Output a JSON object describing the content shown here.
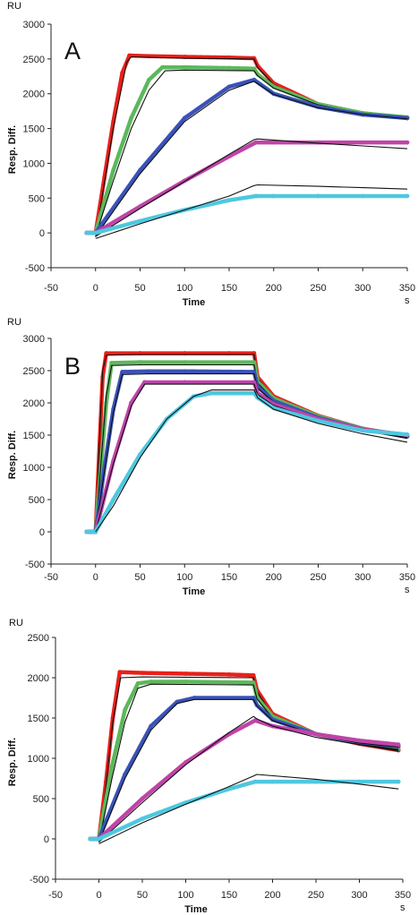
{
  "chart_data": [
    {
      "type": "line",
      "panel_label": "A",
      "ylabel": "Resp. Diff.",
      "y_unit": "RU",
      "xlabel": "Time",
      "x_unit": "s",
      "xlim": [
        -50,
        350
      ],
      "ylim": [
        -500,
        3000
      ],
      "xticks": [
        -50,
        0,
        50,
        100,
        150,
        200,
        250,
        300,
        350
      ],
      "yticks": [
        -500,
        0,
        500,
        1000,
        1500,
        2000,
        2500,
        3000
      ],
      "series": [
        {
          "color": "#e8201a",
          "style": "markers",
          "x": [
            -10,
            0,
            10,
            20,
            30,
            38,
            60,
            100,
            150,
            178,
            182,
            200,
            250,
            300,
            350
          ],
          "y": [
            0,
            0,
            800,
            1600,
            2300,
            2550,
            2540,
            2530,
            2520,
            2510,
            2400,
            2150,
            1850,
            1720,
            1650
          ]
        },
        {
          "color": "#111111",
          "style": "fit",
          "x": [
            0,
            20,
            35,
            40,
            100,
            178,
            182,
            200,
            250,
            300,
            350
          ],
          "y": [
            -60,
            1500,
            2450,
            2530,
            2510,
            2500,
            2380,
            2130,
            1840,
            1710,
            1640
          ]
        },
        {
          "color": "#5cb85c",
          "style": "markers",
          "x": [
            -10,
            0,
            20,
            40,
            60,
            75,
            100,
            150,
            178,
            182,
            200,
            250,
            300,
            350
          ],
          "y": [
            0,
            0,
            900,
            1650,
            2200,
            2380,
            2380,
            2370,
            2360,
            2280,
            2100,
            1850,
            1720,
            1660
          ]
        },
        {
          "color": "#111111",
          "style": "fit",
          "x": [
            0,
            20,
            40,
            60,
            78,
            100,
            178,
            182,
            200,
            250,
            300,
            350
          ],
          "y": [
            -40,
            750,
            1500,
            2050,
            2330,
            2340,
            2330,
            2260,
            2080,
            1840,
            1710,
            1650
          ]
        },
        {
          "color": "#3a52b8",
          "style": "markers",
          "x": [
            -10,
            0,
            50,
            100,
            150,
            178,
            200,
            250,
            300,
            350
          ],
          "y": [
            0,
            0,
            900,
            1650,
            2100,
            2200,
            2000,
            1810,
            1700,
            1650
          ]
        },
        {
          "color": "#111111",
          "style": "fit",
          "x": [
            0,
            50,
            100,
            150,
            178,
            200,
            250,
            300,
            350
          ],
          "y": [
            -50,
            850,
            1600,
            2050,
            2180,
            1990,
            1800,
            1700,
            1640
          ]
        },
        {
          "color": "#c044a8",
          "style": "markers",
          "x": [
            -10,
            0,
            50,
            100,
            150,
            180,
            200,
            250,
            300,
            350
          ],
          "y": [
            0,
            0,
            380,
            750,
            1100,
            1300,
            1300,
            1300,
            1300,
            1300
          ]
        },
        {
          "color": "#111111",
          "style": "fit",
          "x": [
            0,
            50,
            100,
            150,
            178,
            182,
            250,
            300,
            350
          ],
          "y": [
            -50,
            350,
            740,
            1130,
            1340,
            1350,
            1290,
            1250,
            1210
          ]
        },
        {
          "color": "#4ec8e0",
          "style": "markers",
          "x": [
            -10,
            0,
            50,
            100,
            150,
            180,
            200,
            250,
            300,
            350
          ],
          "y": [
            0,
            0,
            170,
            330,
            470,
            530,
            530,
            530,
            530,
            530
          ]
        },
        {
          "color": "#111111",
          "style": "fit",
          "x": [
            0,
            50,
            100,
            150,
            178,
            182,
            250,
            300,
            350
          ],
          "y": [
            -80,
            130,
            330,
            530,
            680,
            690,
            670,
            650,
            630
          ]
        }
      ]
    },
    {
      "type": "line",
      "panel_label": "B",
      "ylabel": "Resp. Diff.",
      "y_unit": "RU",
      "xlabel": "Time",
      "x_unit": "s",
      "xlim": [
        -50,
        350
      ],
      "ylim": [
        -500,
        3000
      ],
      "xticks": [
        -50,
        0,
        50,
        100,
        150,
        200,
        250,
        300,
        350
      ],
      "yticks": [
        -500,
        0,
        500,
        1000,
        1500,
        2000,
        2500,
        3000
      ],
      "series": [
        {
          "color": "#e8201a",
          "style": "markers",
          "x": [
            -10,
            0,
            4,
            8,
            12,
            50,
            100,
            150,
            178,
            182,
            200,
            250,
            300,
            350
          ],
          "y": [
            0,
            0,
            1200,
            2400,
            2770,
            2770,
            2770,
            2770,
            2770,
            2400,
            2100,
            1800,
            1600,
            1480
          ]
        },
        {
          "color": "#111111",
          "style": "fit",
          "x": [
            0,
            4,
            8,
            12,
            50,
            178,
            182,
            200,
            250,
            300,
            350
          ],
          "y": [
            0,
            1300,
            2500,
            2740,
            2750,
            2750,
            2380,
            2080,
            1780,
            1580,
            1450
          ]
        },
        {
          "color": "#5cb85c",
          "style": "markers",
          "x": [
            -10,
            0,
            6,
            12,
            18,
            50,
            100,
            178,
            182,
            200,
            250,
            300,
            350
          ],
          "y": [
            0,
            0,
            1000,
            2000,
            2620,
            2630,
            2630,
            2630,
            2330,
            2070,
            1790,
            1600,
            1480
          ]
        },
        {
          "color": "#111111",
          "style": "fit",
          "x": [
            0,
            6,
            12,
            18,
            50,
            178,
            182,
            200,
            250,
            300,
            350
          ],
          "y": [
            0,
            1050,
            2100,
            2580,
            2590,
            2590,
            2310,
            2050,
            1770,
            1580,
            1450
          ]
        },
        {
          "color": "#3a52b8",
          "style": "markers",
          "x": [
            -10,
            0,
            10,
            20,
            30,
            60,
            100,
            178,
            182,
            200,
            250,
            300,
            350
          ],
          "y": [
            0,
            0,
            1000,
            1900,
            2480,
            2490,
            2490,
            2480,
            2250,
            2030,
            1770,
            1590,
            1480
          ]
        },
        {
          "color": "#111111",
          "style": "fit",
          "x": [
            0,
            10,
            20,
            30,
            60,
            178,
            182,
            200,
            250,
            300,
            350
          ],
          "y": [
            0,
            950,
            1850,
            2440,
            2450,
            2450,
            2230,
            2010,
            1750,
            1570,
            1450
          ]
        },
        {
          "color": "#c044a8",
          "style": "markers",
          "x": [
            -10,
            0,
            20,
            40,
            55,
            100,
            178,
            182,
            200,
            250,
            300,
            350
          ],
          "y": [
            0,
            0,
            1100,
            2000,
            2320,
            2320,
            2320,
            2150,
            1980,
            1750,
            1590,
            1500
          ]
        },
        {
          "color": "#111111",
          "style": "fit",
          "x": [
            0,
            20,
            40,
            55,
            100,
            178,
            182,
            200,
            250,
            300,
            350
          ],
          "y": [
            0,
            1050,
            1950,
            2290,
            2290,
            2290,
            2130,
            1960,
            1730,
            1570,
            1460
          ]
        },
        {
          "color": "#4ec8e0",
          "style": "markers",
          "x": [
            -10,
            0,
            20,
            50,
            80,
            110,
            130,
            178,
            182,
            200,
            250,
            300,
            350
          ],
          "y": [
            0,
            0,
            500,
            1200,
            1750,
            2100,
            2150,
            2150,
            2080,
            1920,
            1720,
            1570,
            1510
          ]
        },
        {
          "color": "#111111",
          "style": "fit",
          "x": [
            0,
            20,
            50,
            80,
            110,
            130,
            178,
            182,
            200,
            250,
            300,
            350
          ],
          "y": [
            0,
            400,
            1150,
            1750,
            2100,
            2200,
            2200,
            2080,
            1900,
            1680,
            1520,
            1390
          ]
        }
      ]
    },
    {
      "type": "line",
      "panel_label": "",
      "ylabel": "Resp. Diff.",
      "y_unit": "RU",
      "xlabel": "Time",
      "x_unit": "s",
      "xlim": [
        -50,
        350
      ],
      "ylim": [
        -500,
        2500
      ],
      "xticks": [
        -50,
        0,
        50,
        100,
        150,
        200,
        250,
        300,
        350
      ],
      "yticks": [
        -500,
        0,
        500,
        1000,
        1500,
        2000,
        2500
      ],
      "series": [
        {
          "color": "#e8201a",
          "style": "markers",
          "x": [
            -10,
            0,
            8,
            16,
            24,
            50,
            100,
            150,
            178,
            182,
            200,
            250,
            300,
            345
          ],
          "y": [
            0,
            0,
            700,
            1500,
            2070,
            2060,
            2050,
            2040,
            2030,
            1850,
            1550,
            1300,
            1180,
            1100
          ]
        },
        {
          "color": "#111111",
          "style": "fit",
          "x": [
            0,
            8,
            16,
            25,
            50,
            178,
            182,
            200,
            250,
            300,
            345
          ],
          "y": [
            -40,
            650,
            1450,
            2000,
            2010,
            2000,
            1830,
            1530,
            1290,
            1170,
            1090
          ]
        },
        {
          "color": "#5cb85c",
          "style": "markers",
          "x": [
            -10,
            0,
            15,
            30,
            45,
            60,
            100,
            178,
            182,
            200,
            250,
            300,
            345
          ],
          "y": [
            0,
            0,
            900,
            1600,
            1930,
            1950,
            1950,
            1940,
            1760,
            1520,
            1300,
            1190,
            1120
          ]
        },
        {
          "color": "#111111",
          "style": "fit",
          "x": [
            0,
            15,
            30,
            45,
            60,
            178,
            182,
            200,
            250,
            300,
            345
          ],
          "y": [
            -40,
            750,
            1450,
            1870,
            1920,
            1910,
            1740,
            1500,
            1290,
            1180,
            1110
          ]
        },
        {
          "color": "#3a52b8",
          "style": "markers",
          "x": [
            -10,
            0,
            30,
            60,
            90,
            110,
            178,
            182,
            200,
            250,
            300,
            345
          ],
          "y": [
            0,
            0,
            800,
            1400,
            1700,
            1750,
            1750,
            1660,
            1480,
            1300,
            1200,
            1150
          ]
        },
        {
          "color": "#111111",
          "style": "fit",
          "x": [
            0,
            30,
            60,
            90,
            110,
            178,
            182,
            200,
            250,
            300,
            345
          ],
          "y": [
            -40,
            750,
            1350,
            1680,
            1730,
            1730,
            1650,
            1470,
            1290,
            1190,
            1140
          ]
        },
        {
          "color": "#c044a8",
          "style": "markers",
          "x": [
            -10,
            0,
            50,
            100,
            150,
            180,
            200,
            250,
            300,
            345
          ],
          "y": [
            0,
            0,
            500,
            950,
            1300,
            1470,
            1400,
            1300,
            1220,
            1170
          ]
        },
        {
          "color": "#111111",
          "style": "fit",
          "x": [
            0,
            50,
            100,
            150,
            178,
            182,
            200,
            250,
            300,
            345
          ],
          "y": [
            -40,
            450,
            920,
            1320,
            1520,
            1490,
            1400,
            1260,
            1170,
            1100
          ]
        },
        {
          "color": "#4ec8e0",
          "style": "markers",
          "x": [
            -10,
            0,
            50,
            100,
            150,
            180,
            200,
            250,
            300,
            345
          ],
          "y": [
            0,
            0,
            250,
            450,
            620,
            710,
            710,
            710,
            710,
            710
          ]
        },
        {
          "color": "#111111",
          "style": "fit",
          "x": [
            0,
            50,
            100,
            150,
            178,
            182,
            250,
            300,
            345
          ],
          "y": [
            -60,
            200,
            430,
            650,
            780,
            800,
            740,
            680,
            620
          ]
        }
      ]
    }
  ]
}
